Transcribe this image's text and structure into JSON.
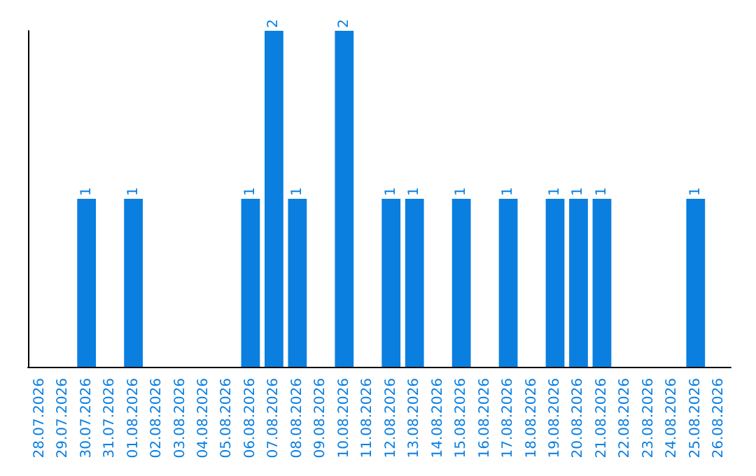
{
  "chart_data": {
    "type": "bar",
    "categories": [
      "28.07.2026",
      "29.07.2026",
      "30.07.2026",
      "31.07.2026",
      "01.08.2026",
      "02.08.2026",
      "03.08.2026",
      "04.08.2026",
      "05.08.2026",
      "06.08.2026",
      "07.08.2026",
      "08.08.2026",
      "09.08.2026",
      "10.08.2026",
      "11.08.2026",
      "12.08.2026",
      "13.08.2026",
      "14.08.2026",
      "15.08.2026",
      "16.08.2026",
      "17.08.2026",
      "18.08.2026",
      "19.08.2026",
      "20.08.2026",
      "21.08.2026",
      "22.08.2026",
      "23.08.2026",
      "24.08.2026",
      "25.08.2026",
      "26.08.2026"
    ],
    "values": [
      0,
      0,
      1,
      0,
      1,
      0,
      0,
      0,
      0,
      1,
      2,
      1,
      0,
      2,
      0,
      1,
      1,
      0,
      1,
      0,
      1,
      0,
      1,
      1,
      1,
      0,
      0,
      0,
      1,
      0
    ],
    "value_labels": [
      null,
      null,
      "1",
      null,
      "1",
      null,
      null,
      null,
      null,
      "1",
      "2",
      "1",
      null,
      "2",
      null,
      "1",
      "1",
      null,
      "1",
      null,
      "1",
      null,
      "1",
      "1",
      "1",
      null,
      null,
      null,
      "1",
      null
    ],
    "color": "#0a7fe0",
    "grid": false,
    "tick_labels": "x"
  }
}
